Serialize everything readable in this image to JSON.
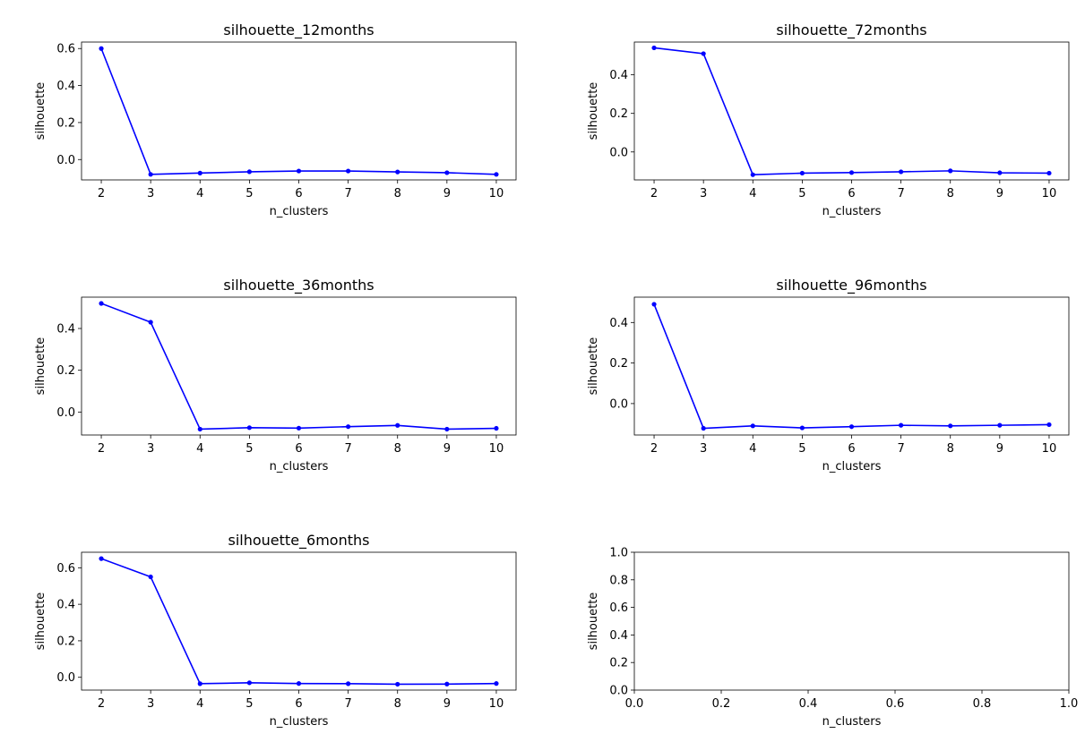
{
  "chart_data": [
    {
      "type": "line",
      "title": "silhouette_12months",
      "xlabel": "n_clusters",
      "ylabel": "silhouette",
      "xlim": [
        1.6,
        10.4
      ],
      "ylim": [
        -0.11,
        0.635
      ],
      "xticks": [
        2,
        3,
        4,
        5,
        6,
        7,
        8,
        9,
        10
      ],
      "yticks": [
        0.0,
        0.2,
        0.4,
        0.6
      ],
      "ytick_labels": [
        "0.0",
        "0.2",
        "0.4",
        "0.6"
      ],
      "color": "#0000ff",
      "series": [
        {
          "x": [
            2,
            3,
            4,
            5,
            6,
            7,
            8,
            9,
            10
          ],
          "y": [
            0.6,
            -0.08,
            -0.073,
            -0.066,
            -0.062,
            -0.062,
            -0.067,
            -0.071,
            -0.08
          ]
        }
      ]
    },
    {
      "type": "line",
      "title": "silhouette_72months",
      "xlabel": "n_clusters",
      "ylabel": "silhouette",
      "xlim": [
        1.6,
        10.4
      ],
      "ylim": [
        -0.145,
        0.57
      ],
      "xticks": [
        2,
        3,
        4,
        5,
        6,
        7,
        8,
        9,
        10
      ],
      "yticks": [
        0.0,
        0.2,
        0.4
      ],
      "ytick_labels": [
        "0.0",
        "0.2",
        "0.4"
      ],
      "color": "#0000ff",
      "series": [
        {
          "x": [
            2,
            3,
            4,
            5,
            6,
            7,
            8,
            9,
            10
          ],
          "y": [
            0.54,
            0.51,
            -0.118,
            -0.11,
            -0.107,
            -0.103,
            -0.098,
            -0.108,
            -0.11
          ]
        }
      ]
    },
    {
      "type": "line",
      "title": "silhouette_36months",
      "xlabel": "n_clusters",
      "ylabel": "silhouette",
      "xlim": [
        1.6,
        10.4
      ],
      "ylim": [
        -0.11,
        0.55
      ],
      "xticks": [
        2,
        3,
        4,
        5,
        6,
        7,
        8,
        9,
        10
      ],
      "yticks": [
        0.0,
        0.2,
        0.4
      ],
      "ytick_labels": [
        "0.0",
        "0.2",
        "0.4"
      ],
      "color": "#0000ff",
      "series": [
        {
          "x": [
            2,
            3,
            4,
            5,
            6,
            7,
            8,
            9,
            10
          ],
          "y": [
            0.52,
            0.43,
            -0.082,
            -0.075,
            -0.077,
            -0.07,
            -0.064,
            -0.082,
            -0.078
          ]
        }
      ]
    },
    {
      "type": "line",
      "title": "silhouette_96months",
      "xlabel": "n_clusters",
      "ylabel": "silhouette",
      "xlim": [
        1.6,
        10.4
      ],
      "ylim": [
        -0.155,
        0.525
      ],
      "xticks": [
        2,
        3,
        4,
        5,
        6,
        7,
        8,
        9,
        10
      ],
      "yticks": [
        0.0,
        0.2,
        0.4
      ],
      "ytick_labels": [
        "0.0",
        "0.2",
        "0.4"
      ],
      "color": "#0000ff",
      "series": [
        {
          "x": [
            2,
            3,
            4,
            5,
            6,
            7,
            8,
            9,
            10
          ],
          "y": [
            0.49,
            -0.122,
            -0.11,
            -0.12,
            -0.114,
            -0.107,
            -0.11,
            -0.107,
            -0.104
          ]
        }
      ]
    },
    {
      "type": "line",
      "title": "silhouette_6months",
      "xlabel": "n_clusters",
      "ylabel": "silhouette",
      "xlim": [
        1.6,
        10.4
      ],
      "ylim": [
        -0.07,
        0.685
      ],
      "xticks": [
        2,
        3,
        4,
        5,
        6,
        7,
        8,
        9,
        10
      ],
      "yticks": [
        0.0,
        0.2,
        0.4,
        0.6
      ],
      "ytick_labels": [
        "0.0",
        "0.2",
        "0.4",
        "0.6"
      ],
      "color": "#0000ff",
      "series": [
        {
          "x": [
            2,
            3,
            4,
            5,
            6,
            7,
            8,
            9,
            10
          ],
          "y": [
            0.65,
            0.55,
            -0.035,
            -0.03,
            -0.034,
            -0.035,
            -0.038,
            -0.037,
            -0.034
          ]
        }
      ]
    },
    {
      "type": "line",
      "title": "",
      "xlabel": "n_clusters",
      "ylabel": "silhouette",
      "xlim": [
        0.0,
        1.0
      ],
      "ylim": [
        0.0,
        1.0
      ],
      "xticks": [
        0.0,
        0.2,
        0.4,
        0.6,
        0.8,
        1.0
      ],
      "xtick_labels": [
        "0.0",
        "0.2",
        "0.4",
        "0.6",
        "0.8",
        "1.0"
      ],
      "yticks": [
        0.0,
        0.2,
        0.4,
        0.6,
        0.8,
        1.0
      ],
      "ytick_labels": [
        "0.0",
        "0.2",
        "0.4",
        "0.6",
        "0.8",
        "1.0"
      ],
      "color": "#0000ff",
      "series": []
    }
  ]
}
